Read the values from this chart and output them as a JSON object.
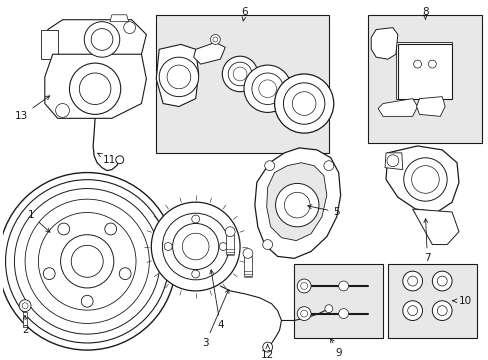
{
  "background_color": "#ffffff",
  "line_color": "#1a1a1a",
  "box_fill": "#e8e8e8",
  "fig_width": 4.89,
  "fig_height": 3.6,
  "dpi": 100
}
